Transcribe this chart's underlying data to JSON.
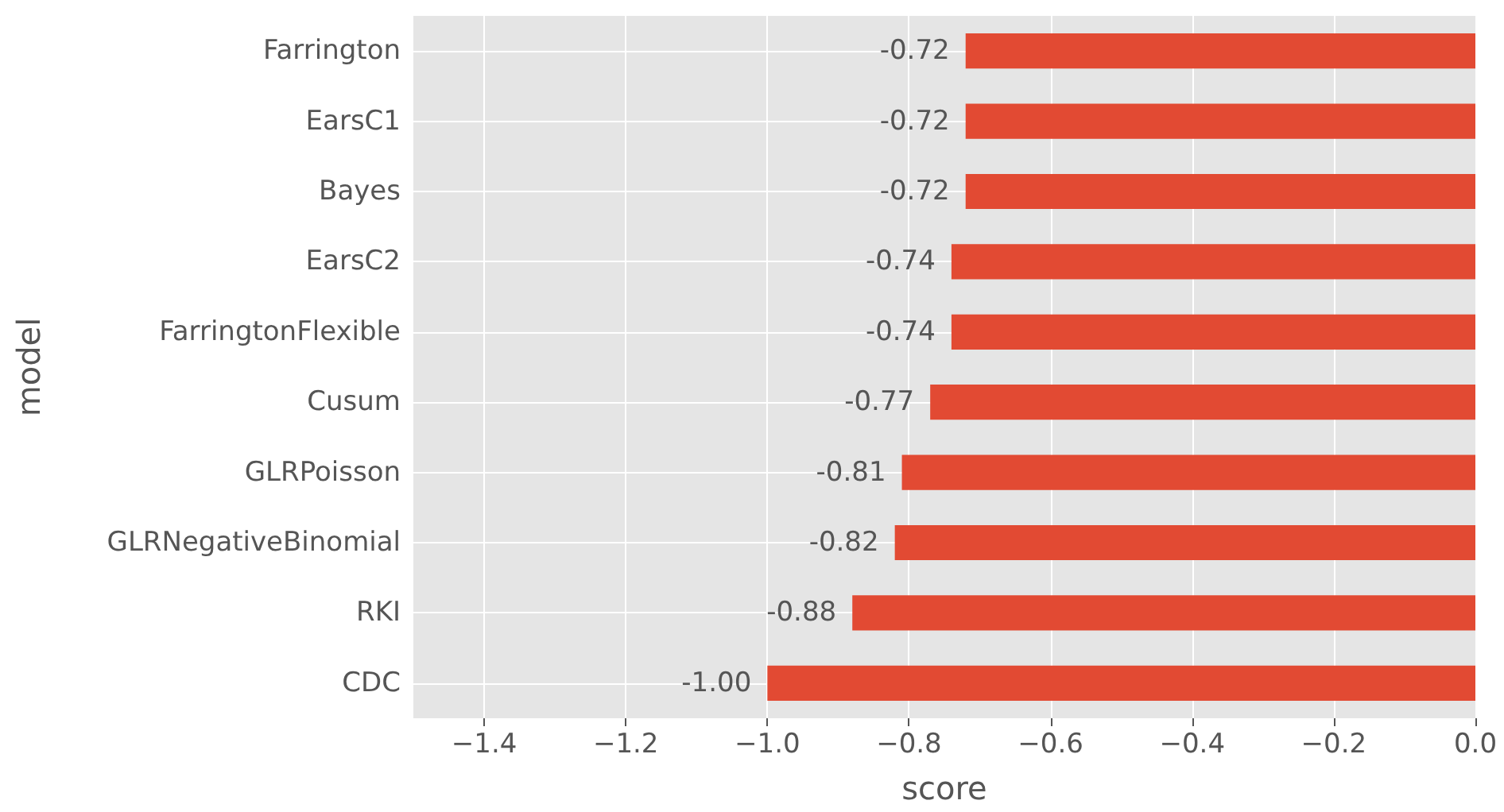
{
  "chart_data": {
    "type": "bar",
    "orientation": "horizontal",
    "xlabel": "score",
    "ylabel": "model",
    "categories": [
      "Farrington",
      "EarsC1",
      "Bayes",
      "EarsC2",
      "FarringtonFlexible",
      "Cusum",
      "GLRPoisson",
      "GLRNegativeBinomial",
      "RKI",
      "CDC"
    ],
    "values": [
      -0.72,
      -0.72,
      -0.72,
      -0.74,
      -0.74,
      -0.77,
      -0.81,
      -0.82,
      -0.88,
      -1.0
    ],
    "value_labels": [
      "-0.72",
      "-0.72",
      "-0.72",
      "-0.74",
      "-0.74",
      "-0.77",
      "-0.81",
      "-0.82",
      "-0.88",
      "-1.00"
    ],
    "color": "#e24a33",
    "xlim": [
      -1.5,
      0
    ],
    "xticks": [
      {
        "value": -1.4,
        "label": "−1.4"
      },
      {
        "value": -1.2,
        "label": "−1.2"
      },
      {
        "value": -1.0,
        "label": "−1.0"
      },
      {
        "value": -0.8,
        "label": "−0.8"
      },
      {
        "value": -0.6,
        "label": "−0.6"
      },
      {
        "value": -0.4,
        "label": "−0.4"
      },
      {
        "value": -0.2,
        "label": "−0.2"
      },
      {
        "value": 0,
        "label": "0.0"
      }
    ],
    "grid": true
  }
}
